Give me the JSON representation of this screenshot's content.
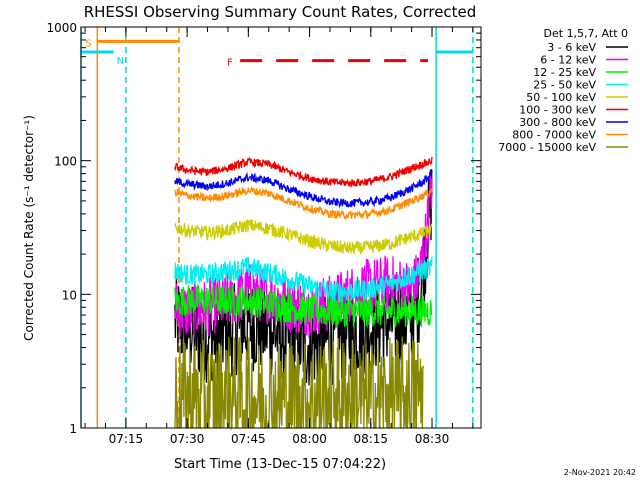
{
  "chart_data": {
    "type": "line",
    "title": "RHESSI Observing Summary Count Rates, Corrected",
    "xlabel": "Start Time (13-Dec-15 07:04:22)",
    "ylabel": "Corrected Count Rate (s⁻¹ detector⁻¹)",
    "y_scale": "log",
    "ylim": [
      1,
      1000
    ],
    "xlim": [
      "07:04",
      "08:42"
    ],
    "x_ticks": [
      "07:15",
      "07:30",
      "07:45",
      "08:00",
      "08:15",
      "08:30"
    ],
    "y_ticks": [
      {
        "label": "1",
        "value": 1
      },
      {
        "label": "10",
        "value": 10
      },
      {
        "label": "100",
        "value": 100
      },
      {
        "label": "1000",
        "value": 1000
      }
    ],
    "legend_title": "Det 1,5,7, Att 0",
    "legend_position": "right",
    "series": [
      {
        "name": "3 - 6 keV",
        "color": "#000000",
        "points": [
          [
            "07:27",
            6.5
          ],
          [
            "07:30",
            5.5
          ],
          [
            "07:35",
            4.8
          ],
          [
            "07:40",
            5.2
          ],
          [
            "07:45",
            6.0
          ],
          [
            "07:50",
            5.5
          ],
          [
            "07:55",
            4.5
          ],
          [
            "08:00",
            4.2
          ],
          [
            "08:05",
            4.6
          ],
          [
            "08:10",
            5.2
          ],
          [
            "08:15",
            5.8
          ],
          [
            "08:20",
            6.2
          ],
          [
            "08:25",
            7.0
          ],
          [
            "08:27",
            10
          ],
          [
            "08:29",
            30
          ],
          [
            "08:30",
            60
          ]
        ]
      },
      {
        "name": "6 - 12 keV",
        "color": "#ee00ee",
        "points": [
          [
            "07:27",
            8
          ],
          [
            "07:30",
            7.5
          ],
          [
            "07:35",
            8
          ],
          [
            "07:40",
            9
          ],
          [
            "07:45",
            10.5
          ],
          [
            "07:50",
            10
          ],
          [
            "07:55",
            8.5
          ],
          [
            "08:00",
            8
          ],
          [
            "08:05",
            8.5
          ],
          [
            "08:10",
            10
          ],
          [
            "08:15",
            11.5
          ],
          [
            "08:20",
            12
          ],
          [
            "08:25",
            11
          ],
          [
            "08:27",
            14
          ],
          [
            "08:29",
            35
          ],
          [
            "08:30",
            70
          ]
        ]
      },
      {
        "name": "12 - 25 keV",
        "color": "#00ee00",
        "points": [
          [
            "07:27",
            9
          ],
          [
            "07:30",
            9
          ],
          [
            "07:35",
            9
          ],
          [
            "07:40",
            9
          ],
          [
            "07:45",
            9
          ],
          [
            "07:50",
            8.5
          ],
          [
            "07:55",
            8
          ],
          [
            "08:00",
            7.5
          ],
          [
            "08:05",
            7.5
          ],
          [
            "08:10",
            7.5
          ],
          [
            "08:15",
            7.5
          ],
          [
            "08:20",
            7.5
          ],
          [
            "08:25",
            7.5
          ],
          [
            "08:30",
            7.5
          ]
        ]
      },
      {
        "name": "25 - 50 keV",
        "color": "#00eeee",
        "points": [
          [
            "07:27",
            15
          ],
          [
            "07:30",
            14
          ],
          [
            "07:35",
            14
          ],
          [
            "07:40",
            15
          ],
          [
            "07:45",
            16
          ],
          [
            "07:50",
            14.5
          ],
          [
            "07:55",
            13
          ],
          [
            "08:00",
            11.5
          ],
          [
            "08:05",
            10.5
          ],
          [
            "08:10",
            10.5
          ],
          [
            "08:15",
            11
          ],
          [
            "08:20",
            12
          ],
          [
            "08:25",
            14
          ],
          [
            "08:30",
            16
          ]
        ]
      },
      {
        "name": "50 - 100 keV",
        "color": "#cccc00",
        "points": [
          [
            "07:27",
            32
          ],
          [
            "07:30",
            30
          ],
          [
            "07:35",
            29
          ],
          [
            "07:40",
            30
          ],
          [
            "07:45",
            33
          ],
          [
            "07:50",
            31
          ],
          [
            "07:55",
            28
          ],
          [
            "08:00",
            25
          ],
          [
            "08:05",
            23
          ],
          [
            "08:10",
            22
          ],
          [
            "08:15",
            22.5
          ],
          [
            "08:20",
            24
          ],
          [
            "08:25",
            27
          ],
          [
            "08:30",
            30
          ]
        ]
      },
      {
        "name": "100 - 300 keV",
        "color": "#ee0000",
        "points": [
          [
            "07:27",
            90
          ],
          [
            "07:30",
            85
          ],
          [
            "07:35",
            82
          ],
          [
            "07:40",
            88
          ],
          [
            "07:45",
            98
          ],
          [
            "07:50",
            94
          ],
          [
            "07:55",
            82
          ],
          [
            "08:00",
            74
          ],
          [
            "08:05",
            69
          ],
          [
            "08:10",
            68
          ],
          [
            "08:15",
            70
          ],
          [
            "08:20",
            76
          ],
          [
            "08:25",
            88
          ],
          [
            "08:28",
            95
          ],
          [
            "08:30",
            100
          ]
        ]
      },
      {
        "name": "300 - 800 keV",
        "color": "#0000ee",
        "points": [
          [
            "07:27",
            70
          ],
          [
            "07:30",
            67
          ],
          [
            "07:35",
            64
          ],
          [
            "07:40",
            68
          ],
          [
            "07:45",
            75
          ],
          [
            "07:50",
            71
          ],
          [
            "07:55",
            61
          ],
          [
            "08:00",
            54
          ],
          [
            "08:05",
            49
          ],
          [
            "08:10",
            48
          ],
          [
            "08:15",
            49
          ],
          [
            "08:20",
            53
          ],
          [
            "08:25",
            62
          ],
          [
            "08:28",
            70
          ],
          [
            "08:30",
            80
          ]
        ]
      },
      {
        "name": "800 - 7000 keV",
        "color": "#ff8c00",
        "points": [
          [
            "07:27",
            58
          ],
          [
            "07:30",
            55
          ],
          [
            "07:35",
            52
          ],
          [
            "07:40",
            55
          ],
          [
            "07:45",
            60
          ],
          [
            "07:50",
            57
          ],
          [
            "07:55",
            50
          ],
          [
            "08:00",
            44
          ],
          [
            "08:05",
            40
          ],
          [
            "08:10",
            39
          ],
          [
            "08:15",
            40
          ],
          [
            "08:20",
            43
          ],
          [
            "08:25",
            50
          ],
          [
            "08:28",
            55
          ],
          [
            "08:30",
            60
          ]
        ]
      },
      {
        "name": "7000 - 15000 keV",
        "color": "#888800",
        "points": [
          [
            "07:27",
            1.6
          ],
          [
            "07:30",
            1.7
          ],
          [
            "07:35",
            1.6
          ],
          [
            "07:40",
            1.8
          ],
          [
            "07:45",
            1.7
          ],
          [
            "07:50",
            1.6
          ],
          [
            "07:55",
            1.7
          ],
          [
            "08:00",
            1.6
          ],
          [
            "08:05",
            1.8
          ],
          [
            "08:10",
            1.7
          ],
          [
            "08:15",
            1.6
          ],
          [
            "08:20",
            1.7
          ],
          [
            "08:25",
            1.8
          ],
          [
            "08:28",
            1.9
          ]
        ]
      }
    ],
    "annotations": [
      {
        "label": "S",
        "color": "#ff8c00"
      },
      {
        "label": "N",
        "color": "#00d8e8"
      },
      {
        "label": "F",
        "color": "#ee0000"
      }
    ],
    "intervals": [
      {
        "label": "S",
        "color": "#ff8c00",
        "start": "07:08",
        "end": "07:28",
        "level": 780
      },
      {
        "label": "N",
        "color": "#00d8e8",
        "start": "07:04",
        "end": "07:12",
        "level": 650
      },
      {
        "label": "N",
        "color": "#00d8e8",
        "start": "08:31",
        "end": "08:40",
        "level": 650
      },
      {
        "label": "F",
        "color": "#ee0000",
        "start": "07:43",
        "end": "08:29",
        "level": 560,
        "dashed": true
      }
    ],
    "markers": [
      {
        "color": "#ff8c00",
        "time": "07:08",
        "style": "solid"
      },
      {
        "color": "#ff8c00",
        "time": "07:28",
        "style": "dashed"
      },
      {
        "color": "#00d8e8",
        "time": "07:04",
        "style": "solid"
      },
      {
        "color": "#00d8e8",
        "time": "07:15",
        "style": "dashed"
      },
      {
        "color": "#00d8e8",
        "time": "08:31",
        "style": "solid"
      },
      {
        "color": "#00d8e8",
        "time": "08:40",
        "style": "dashed"
      }
    ]
  },
  "footer": {
    "timestamp": "2-Nov-2021 20:42"
  }
}
